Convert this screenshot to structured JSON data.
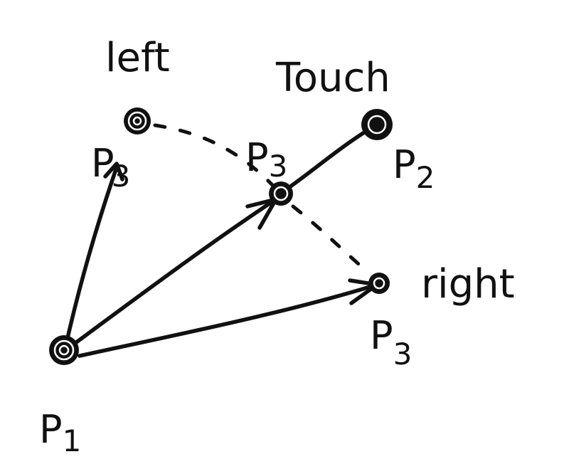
{
  "colors": {
    "ink": "#111111",
    "background": "#ffffff"
  },
  "diagram": {
    "p1_label": {
      "letter": "P",
      "sub": "1"
    },
    "p2_label": {
      "letter": "P",
      "sub": "2"
    },
    "p3_right_label": {
      "letter": "P",
      "sub": "3"
    },
    "p3_left_label": {
      "letter": "P",
      "sub": "3"
    },
    "p3_touch_label": {
      "letter": "P",
      "sub": "3"
    },
    "word_left": "left",
    "word_touch": "Touch",
    "word_right": "right"
  }
}
